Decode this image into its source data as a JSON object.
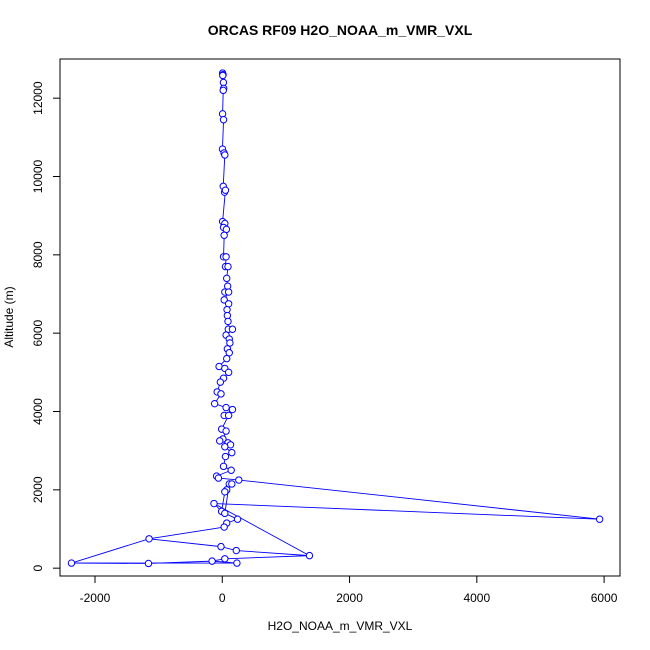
{
  "chart_data": {
    "type": "line",
    "title": "ORCAS RF09 H2O_NOAA_m_VMR_VXL",
    "xlabel": "H2O_NOAA_m_VMR_VXL",
    "ylabel": "Altitude (m)",
    "xlim": [
      -2550,
      6250
    ],
    "ylim": [
      -200,
      13000
    ],
    "xticks": [
      -2000,
      0,
      2000,
      4000,
      6000
    ],
    "yticks": [
      0,
      2000,
      4000,
      6000,
      8000,
      10000,
      12000
    ],
    "grid": false,
    "series": [
      {
        "color": "#0000ff",
        "marker": "open-circle",
        "points": [
          {
            "x": 5,
            "y": 12640
          },
          {
            "x": 12,
            "y": 12600
          },
          {
            "x": 8,
            "y": 12580
          },
          {
            "x": 18,
            "y": 12400
          },
          {
            "x": 22,
            "y": 12250
          },
          {
            "x": 15,
            "y": 12200
          },
          {
            "x": 5,
            "y": 11600
          },
          {
            "x": 20,
            "y": 11450
          },
          {
            "x": 3,
            "y": 10700
          },
          {
            "x": 28,
            "y": 10600
          },
          {
            "x": 40,
            "y": 10550
          },
          {
            "x": 15,
            "y": 9750
          },
          {
            "x": 35,
            "y": 9600
          },
          {
            "x": 50,
            "y": 9650
          },
          {
            "x": 5,
            "y": 8850
          },
          {
            "x": 40,
            "y": 8800
          },
          {
            "x": 20,
            "y": 8700
          },
          {
            "x": 65,
            "y": 8650
          },
          {
            "x": 30,
            "y": 8500
          },
          {
            "x": 20,
            "y": 7950
          },
          {
            "x": 60,
            "y": 7950
          },
          {
            "x": 50,
            "y": 7700
          },
          {
            "x": 90,
            "y": 7700
          },
          {
            "x": 70,
            "y": 7400
          },
          {
            "x": 85,
            "y": 7200
          },
          {
            "x": 40,
            "y": 7050
          },
          {
            "x": 100,
            "y": 7050
          },
          {
            "x": 30,
            "y": 6850
          },
          {
            "x": 100,
            "y": 6750
          },
          {
            "x": 75,
            "y": 6600
          },
          {
            "x": 80,
            "y": 6450
          },
          {
            "x": 90,
            "y": 6300
          },
          {
            "x": 95,
            "y": 6100
          },
          {
            "x": 160,
            "y": 6100
          },
          {
            "x": 60,
            "y": 5950
          },
          {
            "x": 110,
            "y": 5850
          },
          {
            "x": 120,
            "y": 5750
          },
          {
            "x": 80,
            "y": 5600
          },
          {
            "x": 110,
            "y": 5500
          },
          {
            "x": 70,
            "y": 5350
          },
          {
            "x": -50,
            "y": 5150
          },
          {
            "x": 40,
            "y": 5100
          },
          {
            "x": 100,
            "y": 5000
          },
          {
            "x": 20,
            "y": 4850
          },
          {
            "x": -30,
            "y": 4750
          },
          {
            "x": -80,
            "y": 4500
          },
          {
            "x": -20,
            "y": 4450
          },
          {
            "x": -120,
            "y": 4200
          },
          {
            "x": 60,
            "y": 4100
          },
          {
            "x": 160,
            "y": 4050
          },
          {
            "x": 30,
            "y": 3900
          },
          {
            "x": 100,
            "y": 3900
          },
          {
            "x": -10,
            "y": 3550
          },
          {
            "x": 60,
            "y": 3500
          },
          {
            "x": 10,
            "y": 3300
          },
          {
            "x": -40,
            "y": 3250
          },
          {
            "x": 90,
            "y": 3200
          },
          {
            "x": 130,
            "y": 3150
          },
          {
            "x": 40,
            "y": 3100
          },
          {
            "x": 150,
            "y": 2950
          },
          {
            "x": 50,
            "y": 2850
          },
          {
            "x": 20,
            "y": 2600
          },
          {
            "x": 140,
            "y": 2500
          },
          {
            "x": -90,
            "y": 2350
          },
          {
            "x": -60,
            "y": 2300
          },
          {
            "x": 260,
            "y": 2250
          },
          {
            "x": 110,
            "y": 2150
          },
          {
            "x": 150,
            "y": 2150
          },
          {
            "x": 70,
            "y": 2000
          },
          {
            "x": 40,
            "y": 1950
          },
          {
            "x": -130,
            "y": 1650
          },
          {
            "x": -10,
            "y": 1450
          },
          {
            "x": 40,
            "y": 1400
          },
          {
            "x": 5930,
            "y": 1250
          },
          {
            "x": 240,
            "y": 1250
          },
          {
            "x": 70,
            "y": 1150
          },
          {
            "x": 30,
            "y": 1050
          },
          {
            "x": -1150,
            "y": 750
          },
          {
            "x": -20,
            "y": 550
          },
          {
            "x": 220,
            "y": 450
          },
          {
            "x": 1370,
            "y": 320
          },
          {
            "x": 40,
            "y": 240
          },
          {
            "x": -160,
            "y": 180
          },
          {
            "x": 230,
            "y": 130
          },
          {
            "x": -2370,
            "y": 130
          },
          {
            "x": -1160,
            "y": 120
          }
        ],
        "path_order": [
          0,
          1,
          2,
          3,
          4,
          5,
          6,
          7,
          8,
          9,
          10,
          11,
          12,
          13,
          14,
          15,
          16,
          17,
          18,
          19,
          20,
          21,
          22,
          23,
          24,
          25,
          26,
          27,
          28,
          29,
          30,
          31,
          32,
          33,
          34,
          35,
          36,
          37,
          38,
          39,
          40,
          41,
          42,
          43,
          44,
          45,
          46,
          47,
          48,
          49,
          50,
          51,
          52,
          53,
          54,
          55,
          56,
          57,
          58,
          59,
          60,
          61,
          62,
          63,
          64,
          65,
          66,
          67,
          68,
          69,
          70,
          71,
          72,
          73,
          74,
          75,
          76,
          77,
          78,
          79,
          80,
          81,
          82,
          83,
          84,
          85
        ]
      }
    ],
    "segments": [
      [
        0,
        1
      ],
      [
        1,
        2
      ],
      [
        2,
        3
      ],
      [
        3,
        4
      ],
      [
        4,
        5
      ],
      [
        5,
        6
      ],
      [
        6,
        7
      ],
      [
        7,
        8
      ],
      [
        8,
        9
      ],
      [
        9,
        10
      ],
      [
        10,
        11
      ],
      [
        11,
        12
      ],
      [
        12,
        13
      ],
      [
        13,
        14
      ],
      [
        14,
        15
      ],
      [
        15,
        16
      ],
      [
        16,
        17
      ],
      [
        17,
        18
      ],
      [
        18,
        19
      ],
      [
        19,
        20
      ],
      [
        20,
        21
      ],
      [
        21,
        22
      ],
      [
        22,
        23
      ],
      [
        23,
        24
      ],
      [
        24,
        25
      ],
      [
        25,
        26
      ],
      [
        26,
        27
      ],
      [
        27,
        28
      ],
      [
        28,
        29
      ],
      [
        29,
        30
      ],
      [
        30,
        31
      ],
      [
        31,
        32
      ],
      [
        32,
        33
      ],
      [
        33,
        34
      ],
      [
        34,
        35
      ],
      [
        35,
        36
      ],
      [
        36,
        37
      ],
      [
        37,
        38
      ],
      [
        38,
        39
      ],
      [
        39,
        40
      ],
      [
        40,
        41
      ],
      [
        41,
        42
      ],
      [
        42,
        43
      ],
      [
        43,
        44
      ],
      [
        44,
        45
      ],
      [
        45,
        46
      ],
      [
        46,
        47
      ],
      [
        47,
        48
      ],
      [
        48,
        49
      ],
      [
        49,
        50
      ],
      [
        50,
        51
      ],
      [
        51,
        52
      ],
      [
        52,
        53
      ],
      [
        53,
        54
      ],
      [
        54,
        55
      ],
      [
        55,
        56
      ],
      [
        56,
        57
      ],
      [
        57,
        58
      ],
      [
        58,
        59
      ],
      [
        59,
        60
      ],
      [
        60,
        61
      ],
      [
        61,
        62
      ],
      [
        62,
        63
      ],
      [
        63,
        64
      ],
      [
        64,
        65
      ],
      [
        65,
        73
      ],
      [
        73,
        70
      ],
      [
        70,
        71
      ],
      [
        71,
        69
      ],
      [
        69,
        68
      ],
      [
        68,
        67
      ],
      [
        67,
        66
      ],
      [
        66,
        72
      ],
      [
        72,
        74
      ],
      [
        74,
        75
      ],
      [
        75,
        76
      ],
      [
        76,
        77
      ],
      [
        77,
        78
      ],
      [
        78,
        79
      ],
      [
        79,
        80
      ],
      [
        80,
        81
      ],
      [
        81,
        82
      ],
      [
        82,
        83
      ],
      [
        83,
        84
      ],
      [
        84,
        85
      ],
      [
        77,
        84
      ],
      [
        85,
        82
      ],
      [
        80,
        70
      ]
    ]
  }
}
